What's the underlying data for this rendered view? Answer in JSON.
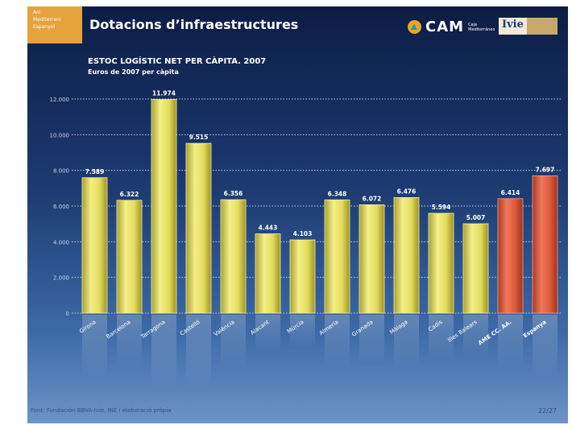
{
  "header": {
    "logo_lines": [
      "Arc",
      "Mediterrani",
      "Espanyol"
    ],
    "title": "Dotacions d’infraestructures",
    "cam_label": "CAM",
    "cam_sub": "Caja Mediterráneo",
    "ivie_label": "Ivie"
  },
  "footer": {
    "source": "Font: Fundación BBVA-Ivie, INE i elaboració pròpia",
    "page": "22/27"
  },
  "colors": {
    "bar_yellow": "#e6e05a",
    "bar_red": "#e05a3c",
    "text": "#ffffff",
    "grid": "#c9d3e4"
  },
  "chart_data": {
    "type": "bar",
    "title": "ESTOC LOGÍSTIC NET PER CÀPITA. 2007",
    "subtitle": "Euros de 2007 per càpita",
    "categories": [
      "Girona",
      "Barcelona",
      "Tarragona",
      "Castelló",
      "València",
      "Alacant",
      "Múrcia",
      "Almeria",
      "Granada",
      "Màlaga",
      "Cadis",
      "Illes Balears",
      "AME CC. AA.",
      "Espanya"
    ],
    "values": [
      7589,
      6322,
      11974,
      9515,
      6356,
      4443,
      4103,
      6348,
      6072,
      6476,
      5594,
      5007,
      6414,
      7697
    ],
    "value_labels": [
      "7.589",
      "6.322",
      "11.974",
      "9.515",
      "6.356",
      "4.443",
      "4.103",
      "6.348",
      "6.072",
      "6.476",
      "5.594",
      "5.007",
      "6.414",
      "7.697"
    ],
    "highlight": [
      false,
      false,
      false,
      false,
      false,
      false,
      false,
      false,
      false,
      false,
      false,
      false,
      true,
      true
    ],
    "y_ticks": [
      0,
      2000,
      4000,
      6000,
      8000,
      10000,
      12000
    ],
    "y_tick_labels": [
      "0",
      "2.000",
      "4.000",
      "6.000",
      "8.000",
      "10.000",
      "12.000"
    ],
    "ylim": [
      0,
      12000
    ],
    "grid": true,
    "xlabel": "",
    "ylabel": ""
  }
}
